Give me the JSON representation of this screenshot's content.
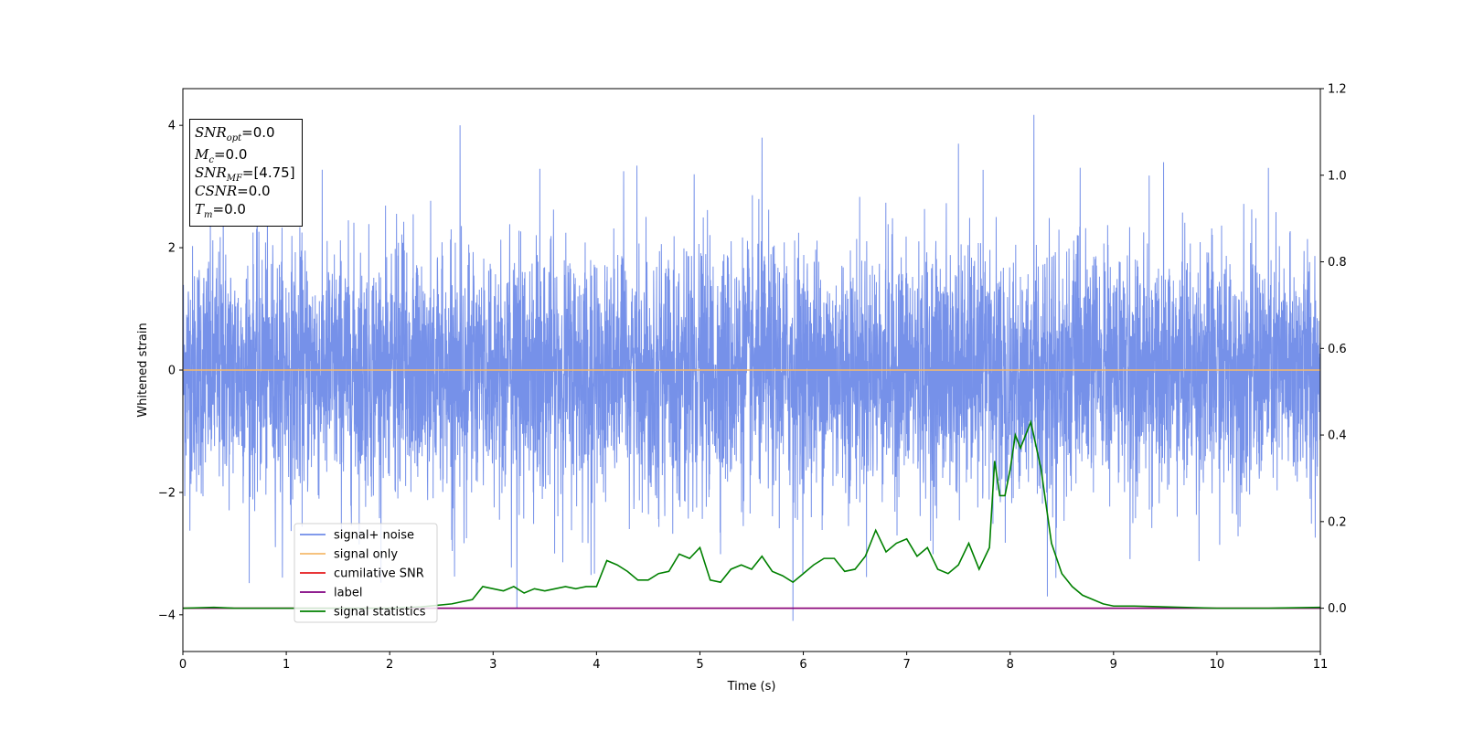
{
  "chart_data": {
    "type": "line",
    "title": "",
    "xlabel": "Time (s)",
    "ylabel": "Whitened strain",
    "xlim": [
      0,
      11
    ],
    "ylim": [
      -4.6,
      4.6
    ],
    "y2lim": [
      -0.1,
      1.2
    ],
    "xticks": [
      "0",
      "1",
      "2",
      "3",
      "4",
      "5",
      "6",
      "7",
      "8",
      "9",
      "10",
      "11"
    ],
    "yticks": [
      "−4",
      "−2",
      "0",
      "2",
      "4"
    ],
    "y2ticks": [
      "0.0",
      "0.2",
      "0.4",
      "0.6",
      "0.8",
      "1.0",
      "1.2"
    ],
    "grid": false,
    "legend_position": "bottom-left",
    "series": [
      {
        "name": "signal+ noise",
        "axis": "left",
        "color": "#6f8be8",
        "description_values": "gaussian-like noise, mostly within about ±2.5, peaks near ±4",
        "x_range": [
          0,
          11
        ],
        "notable_peaks": [
          [
            0.39,
            3.6
          ],
          [
            2.68,
            4.0
          ],
          [
            5.6,
            3.8
          ],
          [
            7.5,
            3.7
          ],
          [
            8.23,
            4.17
          ],
          [
            5.9,
            -4.1
          ],
          [
            3.23,
            -3.9
          ],
          [
            8.36,
            -3.7
          ]
        ]
      },
      {
        "name": "signal only",
        "axis": "left",
        "color": "#f5b96b",
        "x": [
          0,
          11
        ],
        "y": [
          0,
          0
        ]
      },
      {
        "name": "cumilative SNR",
        "axis": "right",
        "color": "#e41a1c",
        "x": [
          0,
          11
        ],
        "y": [
          0,
          0
        ]
      },
      {
        "name": "label",
        "axis": "right",
        "color": "#800080",
        "x": [
          0,
          11
        ],
        "y": [
          0,
          0
        ]
      },
      {
        "name": "signal statistics",
        "axis": "right",
        "color": "#008000",
        "x": [
          0,
          0.3,
          0.5,
          1.0,
          1.5,
          2.0,
          2.3,
          2.6,
          2.8,
          2.9,
          3.0,
          3.1,
          3.2,
          3.3,
          3.4,
          3.5,
          3.6,
          3.7,
          3.8,
          3.9,
          4.0,
          4.1,
          4.2,
          4.3,
          4.4,
          4.5,
          4.6,
          4.7,
          4.8,
          4.9,
          5.0,
          5.1,
          5.2,
          5.3,
          5.4,
          5.5,
          5.6,
          5.7,
          5.8,
          5.9,
          6.0,
          6.1,
          6.2,
          6.3,
          6.4,
          6.5,
          6.6,
          6.7,
          6.8,
          6.9,
          7.0,
          7.1,
          7.2,
          7.3,
          7.4,
          7.5,
          7.6,
          7.7,
          7.8,
          7.85,
          7.9,
          7.95,
          8.0,
          8.05,
          8.1,
          8.2,
          8.3,
          8.4,
          8.5,
          8.6,
          8.7,
          8.8,
          8.9,
          9.0,
          9.2,
          9.5,
          10.0,
          10.5,
          11.0
        ],
        "y": [
          0.0,
          0.002,
          0.0,
          0.0,
          0.0,
          0.0,
          0.003,
          0.01,
          0.02,
          0.05,
          0.045,
          0.04,
          0.05,
          0.035,
          0.045,
          0.04,
          0.045,
          0.05,
          0.045,
          0.05,
          0.05,
          0.11,
          0.1,
          0.085,
          0.065,
          0.065,
          0.08,
          0.085,
          0.125,
          0.115,
          0.14,
          0.065,
          0.06,
          0.09,
          0.1,
          0.09,
          0.12,
          0.085,
          0.075,
          0.06,
          0.08,
          0.1,
          0.115,
          0.115,
          0.085,
          0.09,
          0.12,
          0.18,
          0.13,
          0.15,
          0.16,
          0.12,
          0.14,
          0.09,
          0.08,
          0.1,
          0.15,
          0.09,
          0.14,
          0.34,
          0.26,
          0.26,
          0.32,
          0.4,
          0.37,
          0.43,
          0.32,
          0.15,
          0.08,
          0.05,
          0.03,
          0.02,
          0.01,
          0.005,
          0.005,
          0.003,
          0.0,
          0.0,
          0.002
        ]
      }
    ]
  },
  "stats_box": {
    "snr_opt": {
      "symbol": "SNR",
      "sub": "opt",
      "value": "=0.0"
    },
    "mc": {
      "symbol": "M",
      "sub": "c",
      "value": "=0.0"
    },
    "snr_mf": {
      "symbol": "SNR",
      "sub": "MF",
      "value": "=[4.75]"
    },
    "csnr": {
      "symbol": "CSNR",
      "sub": "",
      "value": "=0.0"
    },
    "tm": {
      "symbol": "T",
      "sub": "m",
      "value": "=0.0"
    }
  }
}
